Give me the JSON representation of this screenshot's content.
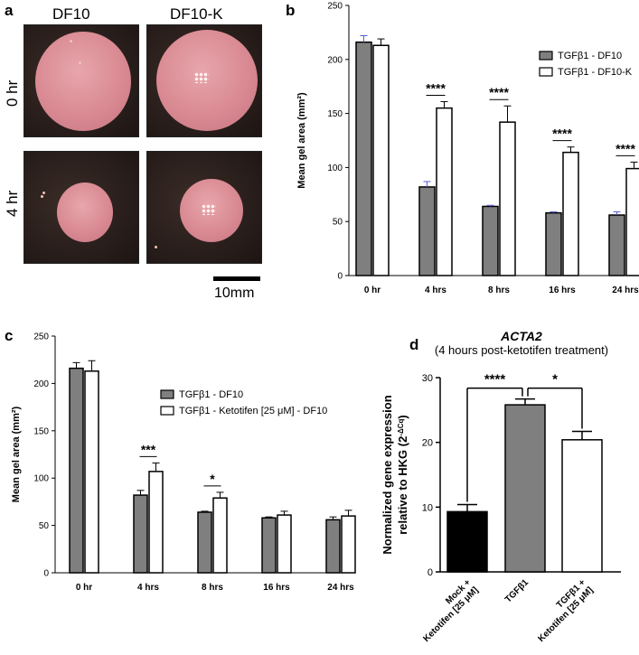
{
  "panels": {
    "a": {
      "letter": "a",
      "col_headers": [
        "DF10",
        "DF10-K"
      ],
      "row_labels": [
        "0 hr",
        "4 hr"
      ],
      "scale_label": "10mm"
    },
    "b": {
      "letter": "b"
    },
    "c": {
      "letter": "c"
    },
    "d": {
      "letter": "d"
    }
  },
  "colors": {
    "gray": "#7f7f7f",
    "white": "#ffffff",
    "black": "#000000",
    "errorbar_b": "#5b5bd6"
  },
  "chart_data": [
    {
      "id": "b",
      "type": "bar",
      "categories": [
        "0 hr",
        "4 hrs",
        "8 hrs",
        "16 hrs",
        "24 hrs"
      ],
      "series": [
        {
          "name": "TGFβ1 - DF10",
          "color": "#7f7f7f",
          "values": [
            216,
            82,
            64,
            58,
            56
          ],
          "errors": [
            6,
            5,
            1,
            1,
            3
          ]
        },
        {
          "name": "TGFβ1 - DF10-K",
          "color": "#ffffff",
          "values": [
            213,
            155,
            142,
            114,
            99
          ],
          "errors": [
            6,
            6,
            15,
            5,
            6
          ]
        }
      ],
      "significance": [
        "",
        "****",
        "****",
        "****",
        "****"
      ],
      "ylabel": "Mean gel area (mm²)",
      "ylim": [
        0,
        250
      ],
      "yticks": [
        0,
        50,
        100,
        150,
        200,
        250
      ],
      "legend": "top-right"
    },
    {
      "id": "c",
      "type": "bar",
      "categories": [
        "0 hr",
        "4 hrs",
        "8 hrs",
        "16 hrs",
        "24 hrs"
      ],
      "series": [
        {
          "name": "TGFβ1 - DF10",
          "color": "#7f7f7f",
          "values": [
            216,
            82,
            64,
            58,
            56
          ],
          "errors": [
            6,
            5,
            1,
            1,
            3
          ]
        },
        {
          "name": "TGFβ1 - Ketotifen [25 μM] - DF10",
          "color": "#ffffff",
          "values": [
            213,
            107,
            79,
            61,
            60
          ],
          "errors": [
            11,
            9,
            6,
            4,
            6
          ]
        }
      ],
      "significance": [
        "",
        "***",
        "*",
        "",
        ""
      ],
      "ylabel": "Mean gel area (mm²)",
      "ylim": [
        0,
        250
      ],
      "yticks": [
        0,
        50,
        100,
        150,
        200,
        250
      ],
      "legend": "center-right"
    },
    {
      "id": "d",
      "type": "bar",
      "title": "ACTA2",
      "subtitle": "(4 hours post-ketotifen treatment)",
      "categories": [
        "Mock +\nKetotifen [25 μM]",
        "TGFβ1",
        "TGFβ1 +\nKetotifen [25 μM]"
      ],
      "values": [
        9.3,
        25.8,
        20.4
      ],
      "errors": [
        1.1,
        0.9,
        1.3
      ],
      "colors": [
        "#000000",
        "#7f7f7f",
        "#ffffff"
      ],
      "comparisons": [
        {
          "from": 0,
          "to": 1,
          "label": "****"
        },
        {
          "from": 1,
          "to": 2,
          "label": "*"
        }
      ],
      "ylabel_line1": "Normalized gene expression",
      "ylabel_line2": "relative to HKG (2",
      "ylabel_sup": "-ΔCq",
      "ylabel_end": ")",
      "ylim": [
        0,
        30
      ],
      "yticks": [
        0,
        10,
        20,
        30
      ]
    }
  ]
}
